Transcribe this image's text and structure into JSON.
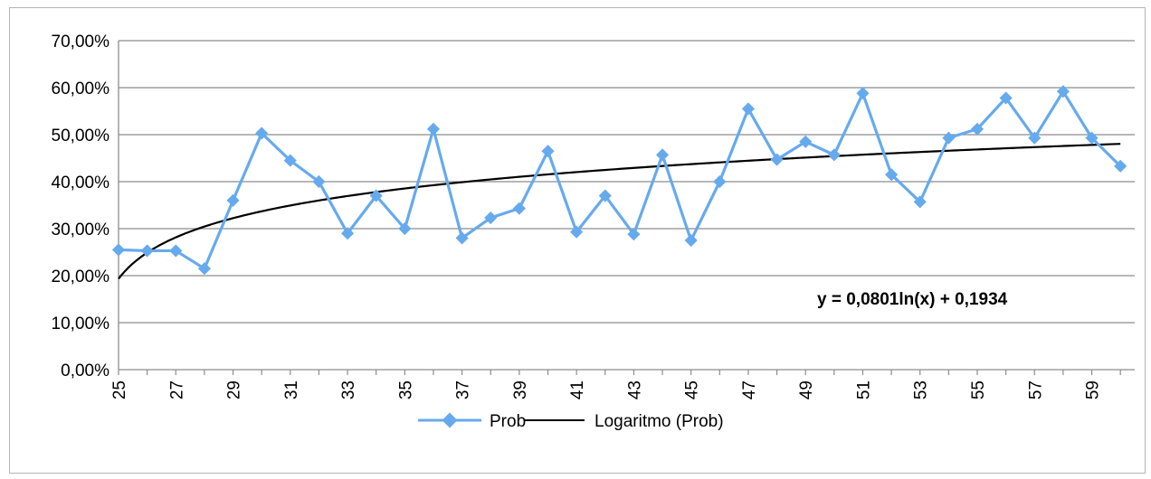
{
  "chart_data": {
    "type": "line",
    "ylim": [
      0,
      0.7
    ],
    "y_ticks": [
      "0,00%",
      "10,00%",
      "20,00%",
      "30,00%",
      "40,00%",
      "50,00%",
      "60,00%",
      "70,00%"
    ],
    "y_tick_values": [
      0,
      0.1,
      0.2,
      0.3,
      0.4,
      0.5,
      0.6,
      0.7
    ],
    "x": [
      25,
      26,
      27,
      28,
      29,
      30,
      31,
      32,
      33,
      34,
      35,
      36,
      37,
      38,
      39,
      40,
      41,
      42,
      43,
      44,
      45,
      46,
      47,
      48,
      49,
      50,
      51,
      52,
      53,
      54,
      55,
      56,
      57,
      58,
      59,
      60
    ],
    "x_tick_labels": [
      "25",
      "27",
      "29",
      "31",
      "33",
      "35",
      "37",
      "39",
      "41",
      "43",
      "45",
      "47",
      "49",
      "51",
      "53",
      "55",
      "57",
      "59"
    ],
    "series": [
      {
        "name": "Prob",
        "color": "#66aaee",
        "values": [
          0.255,
          0.253,
          0.253,
          0.215,
          0.36,
          0.503,
          0.445,
          0.4,
          0.29,
          0.37,
          0.3,
          0.512,
          0.28,
          0.323,
          0.343,
          0.465,
          0.293,
          0.37,
          0.288,
          0.457,
          0.275,
          0.4,
          0.555,
          0.447,
          0.485,
          0.457,
          0.588,
          0.415,
          0.357,
          0.493,
          0.512,
          0.578,
          0.493,
          0.592,
          0.493,
          0.433
        ]
      },
      {
        "name": "Logaritmo (Prob)",
        "color": "#000000",
        "type": "trendline",
        "model": "log",
        "a": 0.0801,
        "b": 0.1934
      }
    ],
    "annotations": [
      "y = 0,0801ln(x) + 0,1934"
    ],
    "legend_position": "bottom",
    "grid": true
  }
}
